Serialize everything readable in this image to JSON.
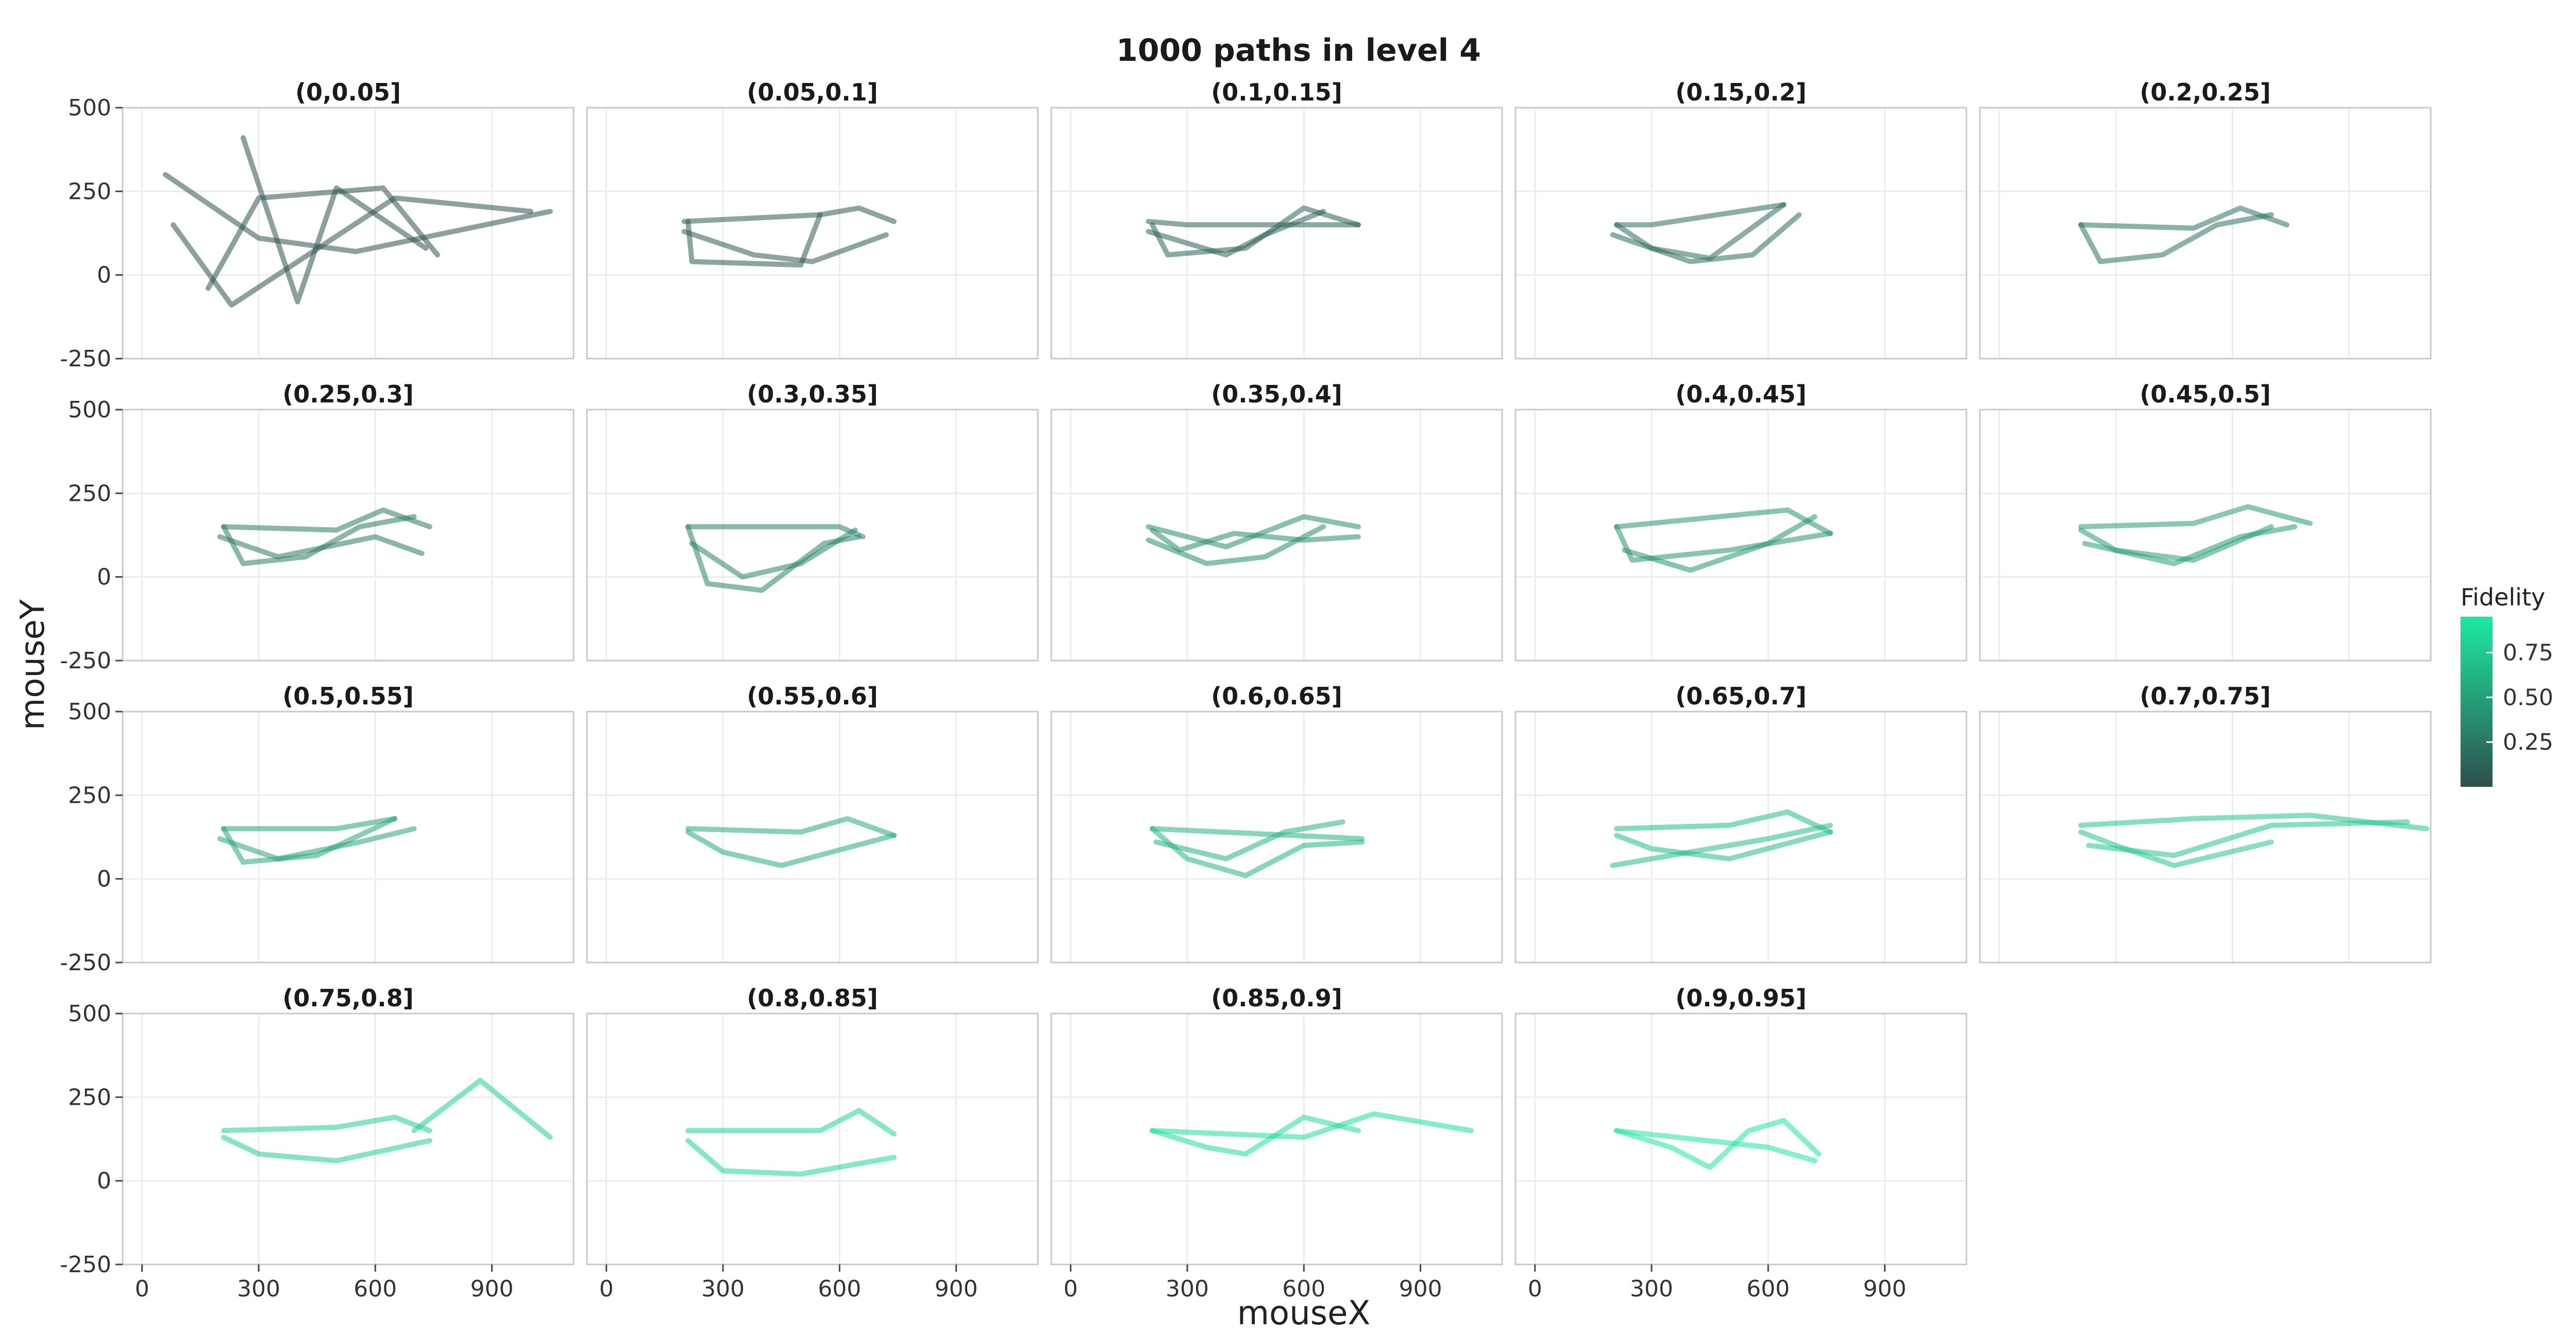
{
  "chart_data": {
    "type": "line",
    "title": "1000 paths in level 4",
    "xlabel": "mouseX",
    "ylabel": "mouseY",
    "xlim": [
      -50,
      1110
    ],
    "ylim": [
      -250,
      500
    ],
    "xticks": [
      0,
      300,
      600,
      900
    ],
    "xtick_labels": [
      "0",
      "300",
      "600",
      "900"
    ],
    "yticks": [
      -250,
      0,
      250,
      500
    ],
    "ytick_labels": [
      "-250",
      "0",
      "250",
      "500"
    ],
    "grid": true,
    "facet_layout": {
      "rows": 4,
      "cols": 5
    },
    "color_scale": {
      "name": "Fidelity",
      "low_color": "#2e4f4d",
      "high_color": "#1de9a1",
      "range": [
        0,
        0.95
      ],
      "ticks": [
        0.25,
        0.5,
        0.75
      ],
      "tick_labels": [
        "0.25",
        "0.50",
        "0.75"
      ]
    },
    "legend_position": "right",
    "panels": [
      {
        "label": "(0,0.05]",
        "fidelity": 0.025,
        "paths": [
          [
            [
              60,
              300
            ],
            [
              300,
              110
            ],
            [
              550,
              70
            ],
            [
              1050,
              190
            ]
          ],
          [
            [
              170,
              -40
            ],
            [
              300,
              230
            ],
            [
              620,
              260
            ],
            [
              760,
              60
            ]
          ],
          [
            [
              260,
              410
            ],
            [
              400,
              -80
            ],
            [
              500,
              260
            ],
            [
              730,
              80
            ]
          ],
          [
            [
              80,
              150
            ],
            [
              230,
              -90
            ],
            [
              650,
              230
            ],
            [
              1000,
              190
            ]
          ]
        ]
      },
      {
        "label": "(0.05,0.1]",
        "fidelity": 0.075,
        "paths": [
          [
            [
              200,
              160
            ],
            [
              550,
              180
            ],
            [
              650,
              200
            ],
            [
              740,
              160
            ]
          ],
          [
            [
              210,
              160
            ],
            [
              220,
              40
            ],
            [
              500,
              30
            ],
            [
              550,
              180
            ]
          ],
          [
            [
              200,
              130
            ],
            [
              380,
              60
            ],
            [
              530,
              40
            ],
            [
              720,
              120
            ]
          ]
        ]
      },
      {
        "label": "(0.1,0.15]",
        "fidelity": 0.125,
        "paths": [
          [
            [
              200,
              160
            ],
            [
              300,
              150
            ],
            [
              740,
              150
            ]
          ],
          [
            [
              210,
              150
            ],
            [
              250,
              60
            ],
            [
              450,
              80
            ],
            [
              600,
              200
            ],
            [
              740,
              150
            ]
          ],
          [
            [
              200,
              130
            ],
            [
              400,
              60
            ],
            [
              500,
              120
            ],
            [
              650,
              190
            ]
          ]
        ]
      },
      {
        "label": "(0.15,0.2]",
        "fidelity": 0.175,
        "paths": [
          [
            [
              210,
              150
            ],
            [
              300,
              150
            ],
            [
              640,
              210
            ]
          ],
          [
            [
              210,
              150
            ],
            [
              300,
              80
            ],
            [
              450,
              50
            ],
            [
              640,
              210
            ]
          ],
          [
            [
              200,
              120
            ],
            [
              400,
              40
            ],
            [
              560,
              60
            ],
            [
              680,
              180
            ]
          ]
        ]
      },
      {
        "label": "(0.2,0.25]",
        "fidelity": 0.225,
        "paths": [
          [
            [
              210,
              150
            ],
            [
              500,
              140
            ],
            [
              620,
              200
            ],
            [
              740,
              150
            ]
          ],
          [
            [
              210,
              150
            ],
            [
              260,
              40
            ],
            [
              420,
              60
            ],
            [
              560,
              150
            ],
            [
              700,
              180
            ]
          ]
        ]
      },
      {
        "label": "(0.25,0.3]",
        "fidelity": 0.275,
        "paths": [
          [
            [
              210,
              150
            ],
            [
              500,
              140
            ],
            [
              620,
              200
            ],
            [
              740,
              150
            ]
          ],
          [
            [
              210,
              150
            ],
            [
              260,
              40
            ],
            [
              420,
              60
            ],
            [
              560,
              150
            ],
            [
              700,
              180
            ]
          ],
          [
            [
              200,
              120
            ],
            [
              350,
              60
            ],
            [
              600,
              120
            ],
            [
              720,
              70
            ]
          ]
        ]
      },
      {
        "label": "(0.3,0.35]",
        "fidelity": 0.325,
        "paths": [
          [
            [
              210,
              150
            ],
            [
              600,
              150
            ],
            [
              660,
              120
            ]
          ],
          [
            [
              210,
              150
            ],
            [
              260,
              -20
            ],
            [
              400,
              -40
            ],
            [
              560,
              100
            ],
            [
              650,
              120
            ]
          ],
          [
            [
              220,
              100
            ],
            [
              350,
              0
            ],
            [
              500,
              40
            ],
            [
              640,
              140
            ]
          ]
        ]
      },
      {
        "label": "(0.35,0.4]",
        "fidelity": 0.375,
        "paths": [
          [
            [
              200,
              150
            ],
            [
              400,
              90
            ],
            [
              600,
              180
            ],
            [
              740,
              150
            ]
          ],
          [
            [
              210,
              140
            ],
            [
              280,
              80
            ],
            [
              420,
              130
            ],
            [
              600,
              110
            ],
            [
              740,
              120
            ]
          ],
          [
            [
              200,
              110
            ],
            [
              350,
              40
            ],
            [
              500,
              60
            ],
            [
              650,
              150
            ]
          ]
        ]
      },
      {
        "label": "(0.4,0.45]",
        "fidelity": 0.425,
        "paths": [
          [
            [
              210,
              150
            ],
            [
              650,
              200
            ],
            [
              760,
              130
            ]
          ],
          [
            [
              210,
              150
            ],
            [
              250,
              50
            ],
            [
              500,
              80
            ],
            [
              760,
              130
            ]
          ],
          [
            [
              230,
              80
            ],
            [
              400,
              20
            ],
            [
              600,
              100
            ],
            [
              720,
              180
            ]
          ]
        ]
      },
      {
        "label": "(0.45,0.5]",
        "fidelity": 0.475,
        "paths": [
          [
            [
              210,
              150
            ],
            [
              500,
              160
            ],
            [
              640,
              210
            ],
            [
              800,
              160
            ]
          ],
          [
            [
              210,
              140
            ],
            [
              300,
              80
            ],
            [
              500,
              50
            ],
            [
              700,
              150
            ]
          ],
          [
            [
              220,
              100
            ],
            [
              450,
              40
            ],
            [
              620,
              120
            ],
            [
              760,
              150
            ]
          ]
        ]
      },
      {
        "label": "(0.5,0.55]",
        "fidelity": 0.525,
        "paths": [
          [
            [
              210,
              150
            ],
            [
              500,
              150
            ],
            [
              650,
              180
            ]
          ],
          [
            [
              210,
              150
            ],
            [
              260,
              50
            ],
            [
              450,
              70
            ],
            [
              650,
              180
            ]
          ],
          [
            [
              200,
              120
            ],
            [
              350,
              60
            ],
            [
              560,
              110
            ],
            [
              700,
              150
            ]
          ]
        ]
      },
      {
        "label": "(0.55,0.6]",
        "fidelity": 0.575,
        "paths": [
          [
            [
              210,
              150
            ],
            [
              500,
              140
            ],
            [
              620,
              180
            ],
            [
              740,
              130
            ]
          ],
          [
            [
              210,
              140
            ],
            [
              300,
              80
            ],
            [
              450,
              40
            ],
            [
              740,
              130
            ]
          ]
        ]
      },
      {
        "label": "(0.6,0.65]",
        "fidelity": 0.625,
        "paths": [
          [
            [
              210,
              150
            ],
            [
              750,
              120
            ]
          ],
          [
            [
              210,
              150
            ],
            [
              300,
              60
            ],
            [
              450,
              10
            ],
            [
              600,
              100
            ],
            [
              750,
              110
            ]
          ],
          [
            [
              220,
              110
            ],
            [
              400,
              60
            ],
            [
              550,
              140
            ],
            [
              700,
              170
            ]
          ]
        ]
      },
      {
        "label": "(0.65,0.7]",
        "fidelity": 0.675,
        "paths": [
          [
            [
              210,
              150
            ],
            [
              500,
              160
            ],
            [
              650,
              200
            ],
            [
              760,
              140
            ]
          ],
          [
            [
              210,
              130
            ],
            [
              300,
              90
            ],
            [
              500,
              60
            ],
            [
              760,
              140
            ]
          ],
          [
            [
              200,
              40
            ],
            [
              400,
              80
            ],
            [
              600,
              120
            ],
            [
              760,
              160
            ]
          ]
        ]
      },
      {
        "label": "(0.7,0.75]",
        "fidelity": 0.725,
        "paths": [
          [
            [
              210,
              160
            ],
            [
              500,
              180
            ],
            [
              800,
              190
            ],
            [
              1100,
              150
            ]
          ],
          [
            [
              210,
              140
            ],
            [
              300,
              100
            ],
            [
              450,
              40
            ],
            [
              700,
              110
            ]
          ],
          [
            [
              230,
              100
            ],
            [
              450,
              70
            ],
            [
              700,
              160
            ],
            [
              1050,
              170
            ]
          ]
        ]
      },
      {
        "label": "(0.75,0.8]",
        "fidelity": 0.775,
        "paths": [
          [
            [
              210,
              150
            ],
            [
              500,
              160
            ],
            [
              650,
              190
            ],
            [
              740,
              150
            ]
          ],
          [
            [
              210,
              130
            ],
            [
              300,
              80
            ],
            [
              500,
              60
            ],
            [
              740,
              120
            ]
          ],
          [
            [
              700,
              150
            ],
            [
              870,
              300
            ],
            [
              1050,
              130
            ]
          ]
        ]
      },
      {
        "label": "(0.8,0.85]",
        "fidelity": 0.825,
        "paths": [
          [
            [
              210,
              150
            ],
            [
              550,
              150
            ],
            [
              650,
              210
            ],
            [
              740,
              140
            ]
          ],
          [
            [
              210,
              120
            ],
            [
              300,
              30
            ],
            [
              500,
              20
            ],
            [
              740,
              70
            ]
          ]
        ]
      },
      {
        "label": "(0.85,0.9]",
        "fidelity": 0.875,
        "paths": [
          [
            [
              210,
              150
            ],
            [
              350,
              100
            ],
            [
              450,
              80
            ],
            [
              600,
              190
            ],
            [
              740,
              150
            ]
          ],
          [
            [
              210,
              150
            ],
            [
              600,
              130
            ],
            [
              780,
              200
            ],
            [
              1030,
              150
            ]
          ]
        ]
      },
      {
        "label": "(0.9,0.95]",
        "fidelity": 0.925,
        "paths": [
          [
            [
              210,
              150
            ],
            [
              350,
              100
            ],
            [
              450,
              40
            ],
            [
              550,
              150
            ],
            [
              640,
              180
            ],
            [
              730,
              80
            ]
          ],
          [
            [
              210,
              150
            ],
            [
              600,
              100
            ],
            [
              720,
              60
            ]
          ]
        ]
      }
    ]
  }
}
